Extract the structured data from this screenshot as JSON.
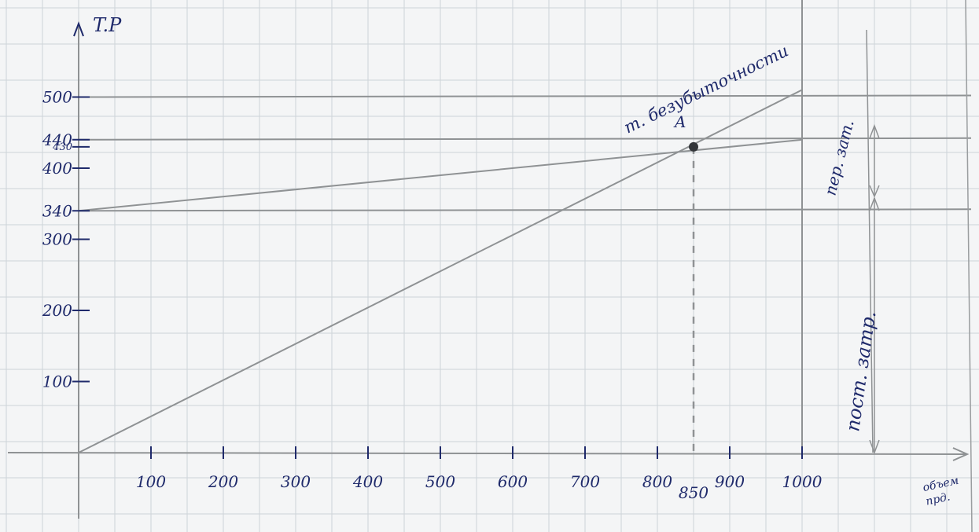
{
  "chart_data": {
    "type": "line",
    "ylabel": "T.P",
    "xlabel": "объем прд.",
    "x_ticks": [
      "100",
      "200",
      "300",
      "400",
      "500",
      "600",
      "700",
      "800",
      "850",
      "900",
      "1000"
    ],
    "y_ticks": [
      "100",
      "200",
      "300",
      "340",
      "400",
      "430",
      "440",
      "500"
    ],
    "series": [
      {
        "values": [
          [
            0,
            0
          ],
          [
            1000,
            510
          ]
        ]
      },
      {
        "values": [
          [
            0,
            340
          ],
          [
            1000,
            440
          ]
        ]
      }
    ],
    "reference_lines": [
      {
        "axis": "y",
        "value": 340
      },
      {
        "axis": "y",
        "value": 440
      },
      {
        "axis": "y",
        "value": 500
      },
      {
        "axis": "x",
        "value": 1000
      }
    ],
    "point": {
      "label": "A",
      "x": 850,
      "y": 430
    },
    "annotations": {
      "point_caption": "т. безубыточности",
      "variable_costs": "пер. зат.",
      "fixed_costs": "пост. затр."
    },
    "colors": {
      "ink": "#1f2a6b",
      "pencil": "#8f9294",
      "grid": "#cdd3d8"
    },
    "grid": true
  }
}
